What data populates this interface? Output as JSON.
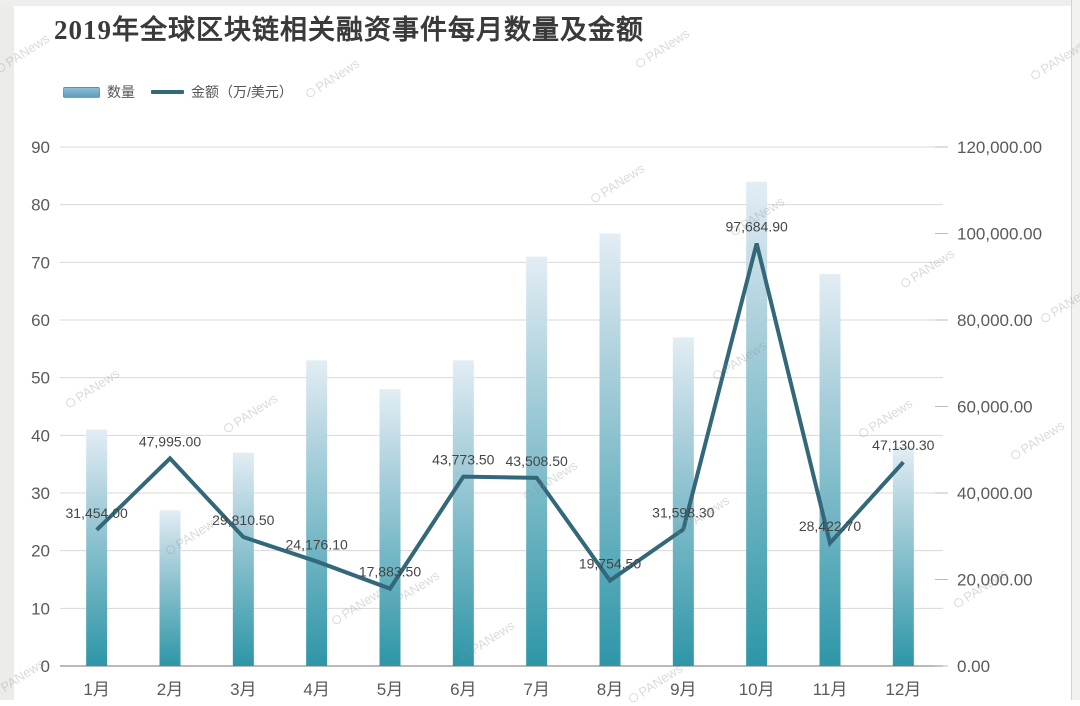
{
  "title": "2019年全球区块链相关融资事件每月数量及金额",
  "watermark": "PANews",
  "legend": [
    {
      "label": "数量"
    },
    {
      "label": "金额（万/美元）"
    }
  ],
  "colors": {
    "bar_top": "#e3edf4",
    "bar_mid": "#abd0dc",
    "bar_bottom": "#2d96a7",
    "line": "#33687a",
    "gridline": "#d8d8d6",
    "axis_line": "#a3a3a1",
    "tick": "#bdbdbb",
    "axis_text": "#5a5a5a",
    "label_text": "#454545",
    "title_text": "#3a3a3a"
  },
  "chart_data": {
    "type": "bar",
    "subtype": "combo-bar-line-dual-axis",
    "title": "2019年全球区块链相关融资事件每月数量及金额",
    "categories": [
      "1月",
      "2月",
      "3月",
      "4月",
      "5月",
      "6月",
      "7月",
      "8月",
      "9月",
      "10月",
      "11月",
      "12月"
    ],
    "series": [
      {
        "name": "数量",
        "type": "bar",
        "axis": "left",
        "values": [
          41,
          27,
          37,
          53,
          48,
          53,
          71,
          75,
          57,
          84,
          68,
          38
        ]
      },
      {
        "name": "金额（万/美元）",
        "type": "line",
        "axis": "right",
        "values": [
          31454.0,
          47995.0,
          29810.5,
          24176.1,
          17883.5,
          43773.5,
          43508.5,
          19754.5,
          31598.3,
          97684.9,
          28422.7,
          47130.3
        ],
        "labels": [
          "31,454.00",
          "47,995.00",
          "29,810.50",
          "24,176.10",
          "17,883.50",
          "43,773.50",
          "43,508.50",
          "19,754.50",
          "31,598.30",
          "97,684.90",
          "28,422.70",
          "47,130.30"
        ]
      }
    ],
    "left_axis": {
      "min": 0,
      "max": 90,
      "step": 10,
      "ticks": [
        "0",
        "10",
        "20",
        "30",
        "40",
        "50",
        "60",
        "70",
        "80",
        "90"
      ]
    },
    "right_axis": {
      "min": 0,
      "max": 120000,
      "step": 20000,
      "ticks": [
        "0.00",
        "20,000.00",
        "40,000.00",
        "60,000.00",
        "80,000.00",
        "100,000.00",
        "120,000.00"
      ]
    },
    "grid": true,
    "legend_position": "top-left"
  }
}
